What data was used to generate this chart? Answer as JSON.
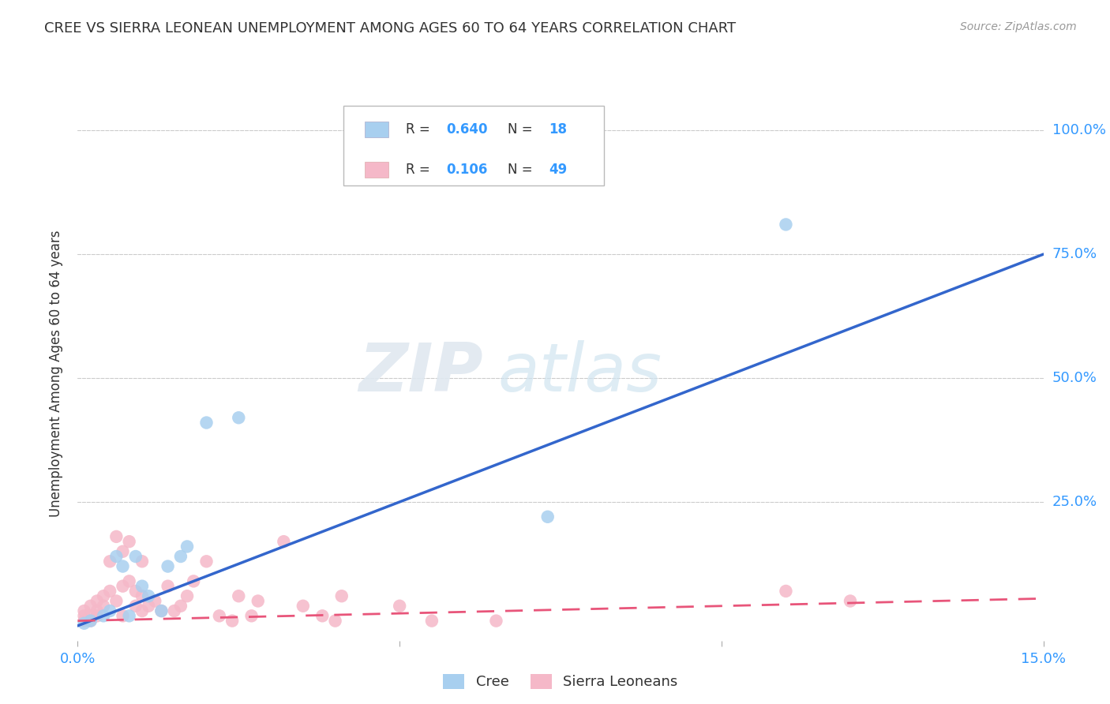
{
  "title": "CREE VS SIERRA LEONEAN UNEMPLOYMENT AMONG AGES 60 TO 64 YEARS CORRELATION CHART",
  "source": "Source: ZipAtlas.com",
  "ylabel": "Unemployment Among Ages 60 to 64 years",
  "ytick_labels": [
    "100.0%",
    "75.0%",
    "50.0%",
    "25.0%"
  ],
  "ytick_values": [
    1.0,
    0.75,
    0.5,
    0.25
  ],
  "xlim": [
    0.0,
    0.15
  ],
  "ylim": [
    -0.03,
    1.05
  ],
  "cree_color": "#A8CFEF",
  "sierra_color": "#F5B8C8",
  "cree_line_color": "#3366CC",
  "sierra_line_color": "#E8557A",
  "legend_r_cree": "0.640",
  "legend_n_cree": "18",
  "legend_r_sierra": "0.106",
  "legend_n_sierra": "49",
  "watermark_zip": "ZIP",
  "watermark_atlas": "atlas",
  "cree_line_x": [
    0.0,
    0.15
  ],
  "cree_line_y": [
    0.0,
    0.75
  ],
  "sierra_line_x": [
    0.0,
    0.15
  ],
  "sierra_line_y": [
    0.01,
    0.055
  ],
  "cree_scatter_x": [
    0.001,
    0.002,
    0.004,
    0.005,
    0.006,
    0.007,
    0.008,
    0.009,
    0.01,
    0.011,
    0.013,
    0.014,
    0.016,
    0.017,
    0.02,
    0.025,
    0.073,
    0.11
  ],
  "cree_scatter_y": [
    0.005,
    0.01,
    0.02,
    0.03,
    0.14,
    0.12,
    0.02,
    0.14,
    0.08,
    0.06,
    0.03,
    0.12,
    0.14,
    0.16,
    0.41,
    0.42,
    0.22,
    0.81
  ],
  "sierra_scatter_x": [
    0.001,
    0.001,
    0.001,
    0.002,
    0.002,
    0.002,
    0.003,
    0.003,
    0.003,
    0.004,
    0.004,
    0.005,
    0.005,
    0.006,
    0.006,
    0.007,
    0.007,
    0.007,
    0.008,
    0.008,
    0.009,
    0.009,
    0.01,
    0.01,
    0.01,
    0.011,
    0.012,
    0.013,
    0.014,
    0.015,
    0.016,
    0.017,
    0.018,
    0.02,
    0.022,
    0.024,
    0.025,
    0.027,
    0.028,
    0.032,
    0.035,
    0.038,
    0.04,
    0.041,
    0.05,
    0.055,
    0.065,
    0.11,
    0.12
  ],
  "sierra_scatter_y": [
    0.03,
    0.01,
    0.02,
    0.04,
    0.02,
    0.01,
    0.05,
    0.03,
    0.02,
    0.06,
    0.04,
    0.07,
    0.13,
    0.18,
    0.05,
    0.15,
    0.08,
    0.02,
    0.17,
    0.09,
    0.07,
    0.04,
    0.13,
    0.06,
    0.03,
    0.04,
    0.05,
    0.03,
    0.08,
    0.03,
    0.04,
    0.06,
    0.09,
    0.13,
    0.02,
    0.01,
    0.06,
    0.02,
    0.05,
    0.17,
    0.04,
    0.02,
    0.01,
    0.06,
    0.04,
    0.01,
    0.01,
    0.07,
    0.05
  ],
  "grid_color": "#CCCCCC",
  "tick_color": "#3399FF",
  "title_fontsize": 13,
  "axis_label_fontsize": 12,
  "tick_fontsize": 13
}
